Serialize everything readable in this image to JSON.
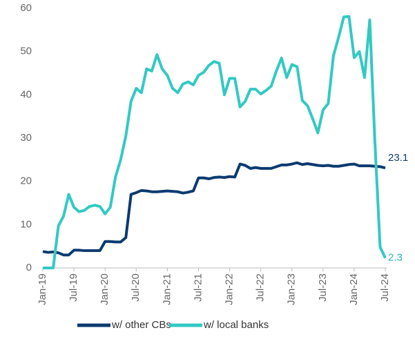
{
  "chart_data": {
    "type": "line",
    "categories": [
      "Jan-19",
      null,
      null,
      null,
      null,
      null,
      "Jul-19",
      null,
      null,
      null,
      null,
      null,
      "Jan-20",
      null,
      null,
      null,
      null,
      null,
      "Jul-20",
      null,
      null,
      null,
      null,
      null,
      "Jan-21",
      null,
      null,
      null,
      null,
      null,
      "Jul-21",
      null,
      null,
      null,
      null,
      null,
      "Jan-22",
      null,
      null,
      null,
      null,
      null,
      "Jul-22",
      null,
      null,
      null,
      null,
      null,
      "Jan-23",
      null,
      null,
      null,
      null,
      null,
      "Jul-23",
      null,
      null,
      null,
      null,
      null,
      "Jan-24",
      null,
      null,
      null,
      null,
      null,
      "Jul-24"
    ],
    "series": [
      {
        "name": "w/ other CBs",
        "color": "#0b3a6f",
        "values": [
          3.8,
          3.6,
          3.7,
          3.5,
          3.0,
          3.0,
          4.1,
          4.1,
          4.0,
          4.0,
          4.0,
          4.0,
          6.1,
          6.1,
          6.0,
          6.0,
          7.0,
          17.0,
          17.4,
          17.9,
          17.8,
          17.6,
          17.6,
          17.7,
          17.8,
          17.7,
          17.6,
          17.3,
          17.5,
          17.8,
          20.8,
          20.8,
          20.6,
          20.9,
          21.0,
          20.9,
          21.1,
          21.0,
          24.0,
          23.7,
          23.0,
          23.2,
          23.0,
          23.0,
          23.0,
          23.4,
          23.8,
          23.8,
          24.0,
          24.3,
          23.9,
          24.1,
          23.9,
          23.7,
          23.6,
          23.7,
          23.5,
          23.5,
          23.7,
          23.9,
          24.0,
          23.6,
          23.6,
          23.6,
          23.5,
          23.4,
          23.1
        ]
      },
      {
        "name": "w/ local banks",
        "color": "#33c9c3",
        "values": [
          0,
          0,
          0,
          9.7,
          12,
          17,
          14,
          13,
          13.3,
          14.2,
          14.5,
          14.2,
          12.5,
          14,
          21,
          25,
          30.5,
          38.5,
          41.5,
          40.5,
          46,
          45.5,
          49.3,
          46,
          44.5,
          41.5,
          40.5,
          42.5,
          43,
          42.3,
          44.5,
          45.2,
          46.8,
          47.7,
          47.3,
          40,
          43.8,
          43.8,
          37.2,
          38.5,
          41.3,
          41.3,
          40.2,
          41,
          42,
          45.5,
          48.5,
          44,
          47,
          46.5,
          38.7,
          37.5,
          34.5,
          31.2,
          36.5,
          38,
          49,
          53.3,
          58,
          58.1,
          48.6,
          50,
          44,
          57.3,
          29,
          4.8,
          2.3
        ]
      }
    ],
    "ylim": [
      0,
      60
    ],
    "yticks": [
      0,
      10,
      20,
      30,
      40,
      50,
      60
    ],
    "grid": false,
    "legend": "bottom"
  }
}
